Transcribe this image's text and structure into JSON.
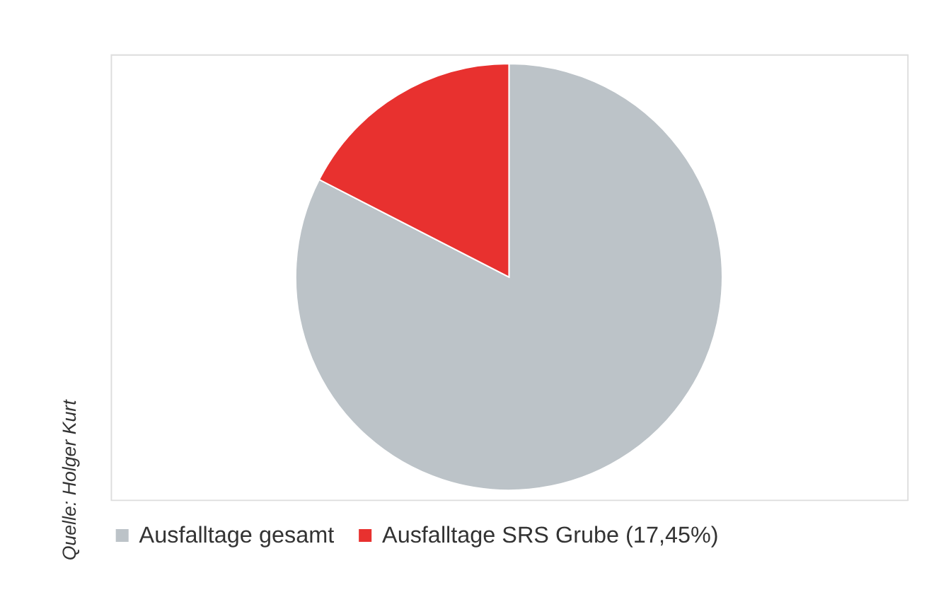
{
  "chart_data": {
    "type": "pie",
    "categories": [
      "Ausfalltage gesamt",
      "Ausfalltage SRS Grube (17,45%)"
    ],
    "values": [
      82.55,
      17.45
    ],
    "colors": [
      "#bcc3c8",
      "#e8312f"
    ],
    "legend": "bottom",
    "annotations": [
      "Quelle: Holger Kurt"
    ]
  }
}
